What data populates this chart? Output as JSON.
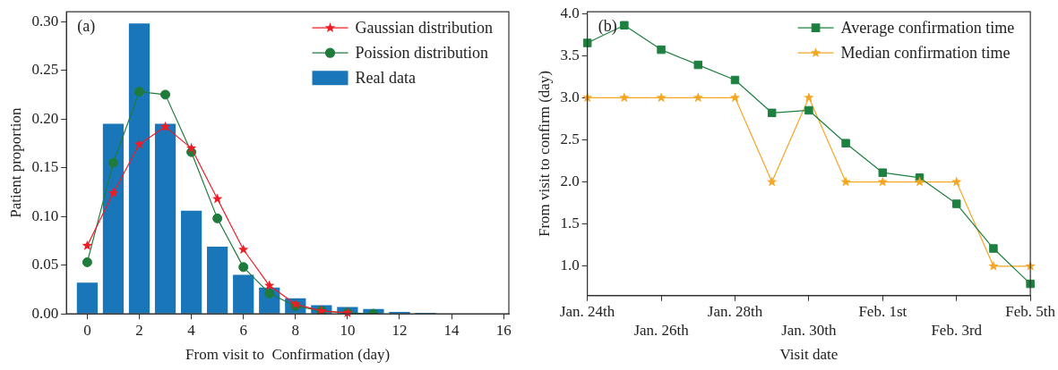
{
  "chart_data": [
    {
      "type": "bar",
      "xlabel": "From visit to  Confirmation (day)",
      "ylabel": "Patient proportion",
      "annotations": [
        "(a)"
      ],
      "xlim": [
        -0.8,
        16.2
      ],
      "xticks": [
        0,
        2,
        4,
        6,
        8,
        10,
        12,
        14,
        16
      ],
      "ylim": [
        0,
        0.31
      ],
      "yticks": [
        {
          "value": 0,
          "label": "0.00"
        },
        {
          "value": 0.05,
          "label": "0.05"
        },
        {
          "value": 0.1,
          "label": "0.10"
        },
        {
          "value": 0.15,
          "label": "0.15"
        },
        {
          "value": 0.2,
          "label": "0.20"
        },
        {
          "value": 0.25,
          "label": "0.25"
        },
        {
          "value": 0.3,
          "label": "0.30"
        }
      ],
      "grid": false,
      "legend": "top right",
      "series": [
        {
          "name": "Gaussian distribution",
          "type": "line",
          "marker": "star",
          "color": "#ee1c25",
          "x": [
            0,
            1,
            2,
            3,
            4,
            5,
            6,
            7,
            8,
            9,
            10
          ],
          "values": [
            0.07,
            0.124,
            0.174,
            0.192,
            0.17,
            0.118,
            0.066,
            0.029,
            0.01,
            0.003,
            0.001
          ]
        },
        {
          "name": "Poission distribution",
          "type": "line",
          "marker": "circle",
          "color": "#1e7b3c",
          "x": [
            0,
            1,
            2,
            3,
            4,
            5,
            6,
            7,
            8,
            9,
            10,
            11
          ],
          "values": [
            0.053,
            0.155,
            0.228,
            0.225,
            0.166,
            0.098,
            0.048,
            0.021,
            0.008,
            0.003,
            0.001,
            0.0
          ]
        },
        {
          "name": "Real data",
          "type": "bar",
          "color": "#1976b8",
          "x": [
            0,
            1,
            2,
            3,
            4,
            5,
            6,
            7,
            8,
            9,
            10,
            11,
            12,
            13
          ],
          "values": [
            0.032,
            0.195,
            0.298,
            0.195,
            0.106,
            0.069,
            0.04,
            0.027,
            0.016,
            0.009,
            0.007,
            0.005,
            0.002,
            0.001
          ]
        }
      ]
    },
    {
      "type": "line",
      "xlabel": "Visit date",
      "ylabel": "From visit to confirm (day)",
      "annotations": [
        "(b)"
      ],
      "categories": [
        "Jan. 24th",
        null,
        "Jan. 26th",
        null,
        "Jan. 28th",
        null,
        "Jan. 30th",
        null,
        "Feb. 1st",
        null,
        "Feb. 3rd",
        null,
        "Feb. 5th"
      ],
      "ylim": [
        0.65,
        4.02
      ],
      "yticks": [
        {
          "value": 1,
          "label": "1.0"
        },
        {
          "value": 1.5,
          "label": "1.5"
        },
        {
          "value": 2,
          "label": "2.0"
        },
        {
          "value": 2.5,
          "label": "2.5"
        },
        {
          "value": 3,
          "label": "3.0"
        },
        {
          "value": 3.5,
          "label": "3.5"
        },
        {
          "value": 4,
          "label": "4.0"
        }
      ],
      "grid": false,
      "legend": "top right",
      "series": [
        {
          "name": "Average confirmation time",
          "marker": "square",
          "color": "#1e8040",
          "values": [
            3.65,
            3.86,
            3.57,
            3.39,
            3.21,
            2.82,
            2.85,
            2.46,
            2.11,
            2.05,
            1.74,
            1.21,
            0.79
          ]
        },
        {
          "name": "Median confirmation time",
          "marker": "star",
          "color": "#f5a623",
          "values": [
            3,
            3,
            3,
            3,
            3,
            2,
            3,
            2,
            2,
            2,
            2,
            1,
            1
          ]
        }
      ]
    }
  ]
}
